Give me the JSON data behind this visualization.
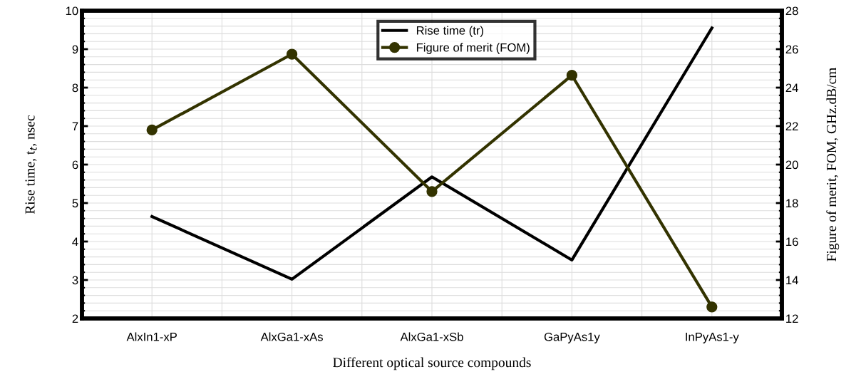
{
  "chart_data": {
    "type": "line",
    "xlabel": "Different optical source compounds",
    "ylabel": "Rise time, t$_{t}$, nsec",
    "y2label": "Figure of merit, FOM, GHz.dB/cm",
    "categories": [
      "AlxIn1-xP",
      "AlxGa1-xAs",
      "AlxGa1-xSb",
      "GaPyAs1y",
      "InPyAs1-y"
    ],
    "series": [
      {
        "name": "Rise time (tr)",
        "color": "#000000",
        "values": [
          4.65,
          3.02,
          5.68,
          3.52,
          9.55
        ],
        "marker": "none"
      },
      {
        "name": "Figure of merit (FOM)",
        "color": "#333300",
        "values": [
          21.8,
          25.74,
          18.6,
          24.64,
          12.6
        ],
        "axis": "y2",
        "marker": "circle"
      }
    ],
    "ylim": [
      2,
      10
    ],
    "yticks": [
      2,
      3,
      4,
      5,
      6,
      7,
      8,
      9,
      10
    ],
    "y2lim": [
      12,
      28
    ],
    "y2ticks": [
      12,
      14,
      16,
      18,
      20,
      22,
      24,
      26,
      28
    ],
    "grid": true,
    "legend": "top center",
    "line_style": "solid"
  }
}
